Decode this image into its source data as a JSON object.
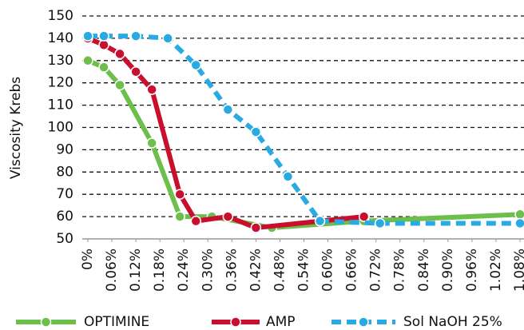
{
  "chart_data": {
    "type": "line",
    "ylabel": "Viscosity Krebs",
    "ylim": [
      50,
      150
    ],
    "yticks": [
      50,
      60,
      70,
      80,
      90,
      100,
      110,
      120,
      130,
      140,
      150
    ],
    "xlim": [
      0,
      1.08
    ],
    "xticks": [
      {
        "value": 0,
        "label": "0%"
      },
      {
        "value": 0.06,
        "label": "0.06%"
      },
      {
        "value": 0.12,
        "label": "0.12%"
      },
      {
        "value": 0.18,
        "label": "0.18%"
      },
      {
        "value": 0.24,
        "label": "0.24%"
      },
      {
        "value": 0.3,
        "label": "0.30%"
      },
      {
        "value": 0.36,
        "label": "0.36%"
      },
      {
        "value": 0.42,
        "label": "0.42%"
      },
      {
        "value": 0.48,
        "label": "0.48%"
      },
      {
        "value": 0.54,
        "label": "0.54%"
      },
      {
        "value": 0.6,
        "label": "0.60%"
      },
      {
        "value": 0.66,
        "label": "0.66%"
      },
      {
        "value": 0.72,
        "label": "0.72%"
      },
      {
        "value": 0.78,
        "label": "0.78%"
      },
      {
        "value": 0.84,
        "label": "0.84%"
      },
      {
        "value": 0.9,
        "label": "0.90%"
      },
      {
        "value": 0.96,
        "label": "0.96%"
      },
      {
        "value": 1.02,
        "label": "1.02%"
      },
      {
        "value": 1.08,
        "label": "1.08%"
      }
    ],
    "grid": true,
    "series": [
      {
        "name": "OPTIMINE",
        "color": "#6cbf4b",
        "dashed": false,
        "x": [
          0,
          0.04,
          0.08,
          0.16,
          0.23,
          0.31,
          0.46,
          0.69,
          1.08
        ],
        "values": [
          130,
          127,
          119,
          93,
          60,
          60,
          55,
          58,
          61
        ]
      },
      {
        "name": "AMP",
        "color": "#c8102e",
        "dashed": false,
        "x": [
          0,
          0.04,
          0.08,
          0.12,
          0.16,
          0.23,
          0.27,
          0.35,
          0.42,
          0.69
        ],
        "values": [
          140,
          137,
          133,
          125,
          117,
          70,
          58,
          60,
          55,
          60
        ]
      },
      {
        "name": "Sol NaOH 25%",
        "color": "#29abe2",
        "dashed": true,
        "x": [
          0,
          0.04,
          0.12,
          0.2,
          0.27,
          0.35,
          0.42,
          0.5,
          0.58,
          0.73,
          1.08
        ],
        "values": [
          141,
          141,
          141,
          140,
          128,
          108,
          98,
          78,
          58,
          57,
          57
        ]
      }
    ]
  }
}
